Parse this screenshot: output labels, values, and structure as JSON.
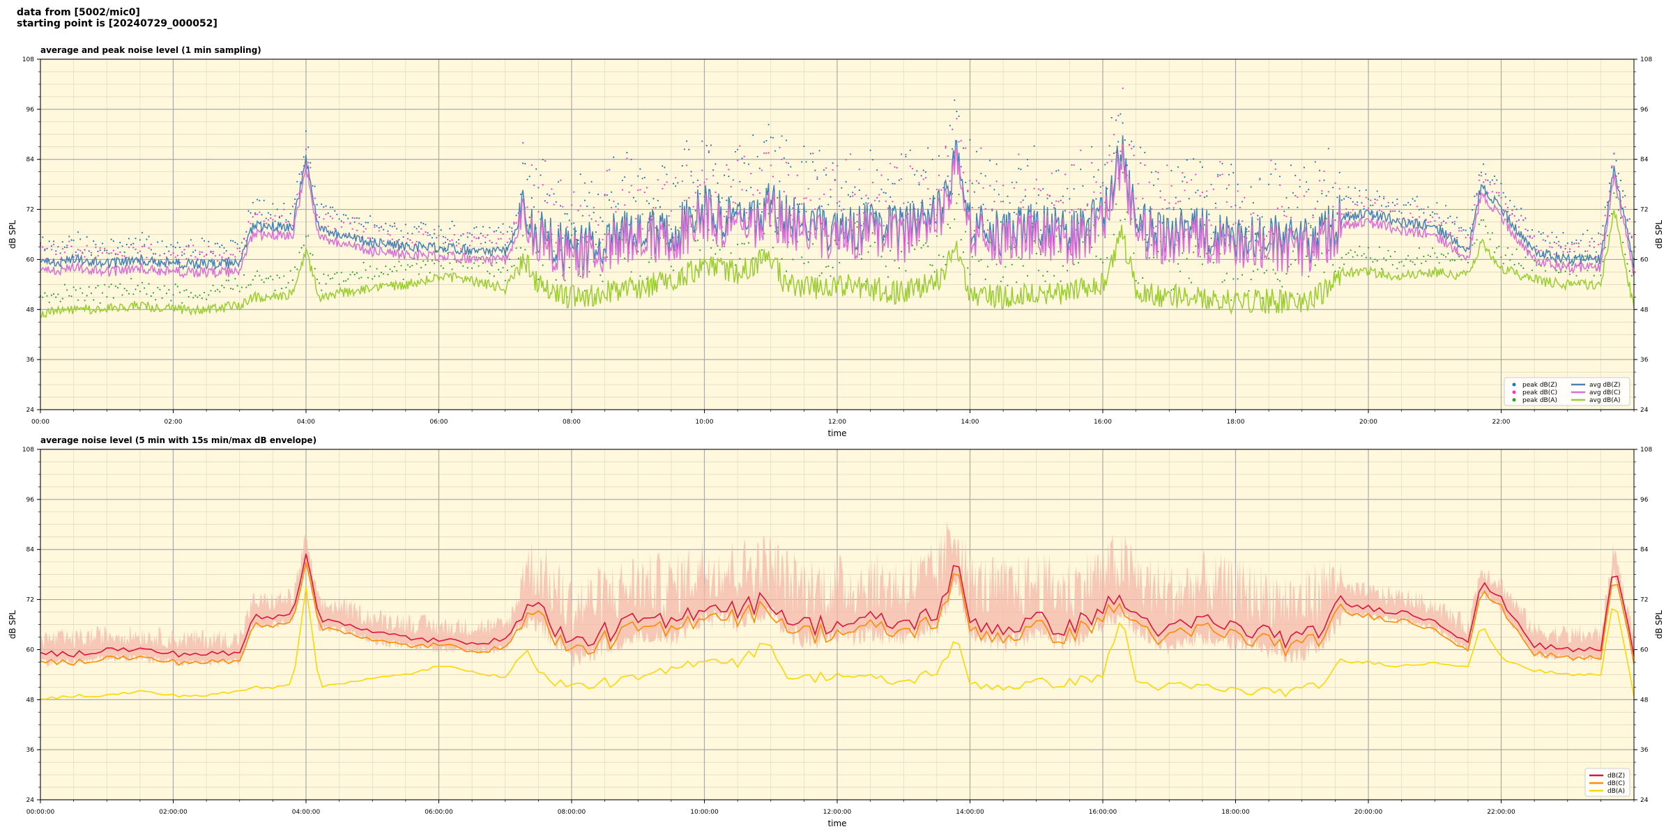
{
  "header": {
    "line1": "data from [5002/mic0]",
    "line2": "starting point is [20240729_000052]"
  },
  "colors": {
    "background": "#fff8dc",
    "peak_z": "#1f77b4",
    "peak_c": "#ff33cc",
    "peak_a": "#2ca02c",
    "avg_z": "#4682b4",
    "avg_c": "#da70d6",
    "avg_a": "#9acd32",
    "db_z": "#dc143c",
    "db_c": "#ff8c00",
    "db_a": "#ffd700",
    "envelope": "#f4b8a8"
  },
  "chart_data": [
    {
      "type": "line",
      "title": "average and peak noise level (1 min sampling)",
      "xlabel": "time",
      "ylabel": "dB SPL",
      "ylim": [
        24,
        108
      ],
      "xlim_hours": [
        0,
        24
      ],
      "yticks": [
        24,
        36,
        48,
        60,
        72,
        84,
        96,
        108
      ],
      "xtick_labels": [
        "00:00",
        "02:00",
        "04:00",
        "06:00",
        "08:00",
        "10:00",
        "12:00",
        "14:00",
        "16:00",
        "18:00",
        "20:00",
        "22:00"
      ],
      "grid": true,
      "legend_position": "lower-right",
      "legend": [
        "peak dB(Z)",
        "peak dB(C)",
        "peak dB(A)",
        "avg dB(Z)",
        "avg dB(C)",
        "avg dB(A)"
      ],
      "x_hours": [
        0,
        0.5,
        1,
        1.5,
        2,
        2.5,
        3,
        3.2,
        3.5,
        3.8,
        4,
        4.2,
        4.5,
        5,
        5.5,
        6,
        6.5,
        7,
        7.3,
        7.5,
        8,
        8.5,
        9,
        9.5,
        10,
        10.5,
        11,
        11.2,
        11.5,
        12,
        12.5,
        13,
        13.5,
        13.8,
        14,
        14.5,
        15,
        15.5,
        16,
        16.3,
        16.5,
        17,
        17.5,
        18,
        18.5,
        19,
        19.4,
        19.6,
        20,
        20.5,
        21,
        21.5,
        21.7,
        22,
        22.5,
        23,
        23.5,
        23.7,
        24
      ],
      "series": [
        {
          "name": "avg dB(Z)",
          "values": [
            59,
            60,
            59,
            60,
            59,
            59,
            59,
            68,
            68,
            68,
            84,
            67,
            66,
            64,
            63,
            63,
            62,
            62,
            72,
            66,
            62,
            65,
            68,
            66,
            72,
            68,
            73,
            70,
            68,
            66,
            68,
            67,
            70,
            84,
            68,
            66,
            68,
            66,
            70,
            86,
            68,
            66,
            67,
            66,
            65,
            64,
            67,
            70,
            71,
            69,
            68,
            62,
            78,
            72,
            62,
            60,
            60,
            82,
            59
          ]
        },
        {
          "name": "avg dB(C)",
          "values": [
            57,
            58,
            57,
            58,
            57,
            57,
            57,
            66,
            66,
            66,
            82,
            65,
            64,
            62,
            61,
            61,
            60,
            60,
            70,
            64,
            60,
            63,
            66,
            64,
            70,
            66,
            71,
            68,
            66,
            64,
            66,
            65,
            68,
            82,
            66,
            64,
            66,
            64,
            68,
            84,
            66,
            64,
            65,
            64,
            63,
            62,
            65,
            68,
            69,
            67,
            66,
            60,
            76,
            70,
            60,
            58,
            58,
            80,
            57
          ]
        },
        {
          "name": "avg dB(A)",
          "values": [
            47,
            48,
            48,
            49,
            48,
            48,
            49,
            51,
            51,
            52,
            62,
            51,
            52,
            53,
            54,
            56,
            55,
            53,
            60,
            54,
            51,
            52,
            53,
            55,
            58,
            57,
            61,
            54,
            53,
            54,
            53,
            52,
            55,
            62,
            52,
            51,
            52,
            52,
            54,
            66,
            52,
            51,
            51,
            50,
            50,
            50,
            53,
            57,
            57,
            56,
            57,
            56,
            64,
            58,
            55,
            54,
            54,
            72,
            48
          ]
        }
      ]
    },
    {
      "type": "line",
      "title": "average noise level (5 min with 15s min/max dB envelope)",
      "xlabel": "time",
      "ylabel": "dB SPL",
      "ylim": [
        24,
        108
      ],
      "xlim_hours": [
        0,
        24
      ],
      "yticks": [
        24,
        36,
        48,
        60,
        72,
        84,
        96,
        108
      ],
      "xtick_labels": [
        "00:00:00",
        "02:00:00",
        "04:00:00",
        "06:00:00",
        "08:00:00",
        "10:00:00",
        "12:00:00",
        "14:00:00",
        "16:00:00",
        "18:00:00",
        "20:00:00",
        "22:00:00"
      ],
      "grid": true,
      "legend_position": "lower-right",
      "legend": [
        "dB(Z)",
        "dB(C)",
        "dB(A)"
      ],
      "x_hours": [
        0,
        0.5,
        1,
        1.5,
        2,
        2.5,
        3,
        3.2,
        3.5,
        3.8,
        4,
        4.2,
        4.5,
        5,
        5.5,
        6,
        6.5,
        7,
        7.3,
        7.5,
        8,
        8.5,
        9,
        9.5,
        10,
        10.5,
        11,
        11.2,
        11.5,
        12,
        12.5,
        13,
        13.5,
        13.8,
        14,
        14.5,
        15,
        15.5,
        16,
        16.3,
        16.5,
        17,
        17.5,
        18,
        18.5,
        19,
        19.4,
        19.6,
        20,
        20.5,
        21,
        21.5,
        21.7,
        22,
        22.5,
        23,
        23.5,
        23.7,
        24
      ],
      "series": [
        {
          "name": "dB(Z)",
          "values": [
            59,
            59,
            60,
            60,
            59,
            59,
            59,
            68,
            68,
            69,
            83,
            67,
            67,
            64,
            63,
            62,
            62,
            62,
            71,
            70,
            61,
            64,
            67,
            66,
            71,
            70,
            72,
            68,
            66,
            66,
            67,
            66,
            69,
            80,
            67,
            65,
            67,
            65,
            70,
            72,
            68,
            64,
            67,
            65,
            64,
            62,
            67,
            71,
            70,
            69,
            67,
            62,
            76,
            72,
            61,
            60,
            60,
            81,
            59
          ]
        },
        {
          "name": "dB(C)",
          "values": [
            57,
            57,
            58,
            58,
            57,
            57,
            57,
            66,
            66,
            67,
            81,
            65,
            65,
            62,
            61,
            61,
            60,
            60,
            69,
            68,
            59,
            62,
            65,
            64,
            69,
            68,
            70,
            66,
            64,
            64,
            65,
            64,
            67,
            78,
            65,
            63,
            65,
            63,
            68,
            70,
            66,
            62,
            65,
            63,
            62,
            60,
            65,
            69,
            68,
            67,
            65,
            60,
            74,
            70,
            59,
            58,
            58,
            79,
            57
          ]
        },
        {
          "name": "dB(A)",
          "values": [
            48,
            49,
            49,
            50,
            49,
            49,
            50,
            51,
            51,
            52,
            75,
            51,
            52,
            53,
            54,
            56,
            55,
            53,
            61,
            54,
            51,
            52,
            53,
            55,
            58,
            57,
            62,
            54,
            53,
            54,
            53,
            52,
            55,
            62,
            52,
            51,
            52,
            52,
            54,
            68,
            52,
            51,
            51,
            50,
            50,
            50,
            53,
            57,
            57,
            56,
            57,
            56,
            66,
            58,
            55,
            54,
            54,
            73,
            49
          ]
        }
      ]
    }
  ]
}
